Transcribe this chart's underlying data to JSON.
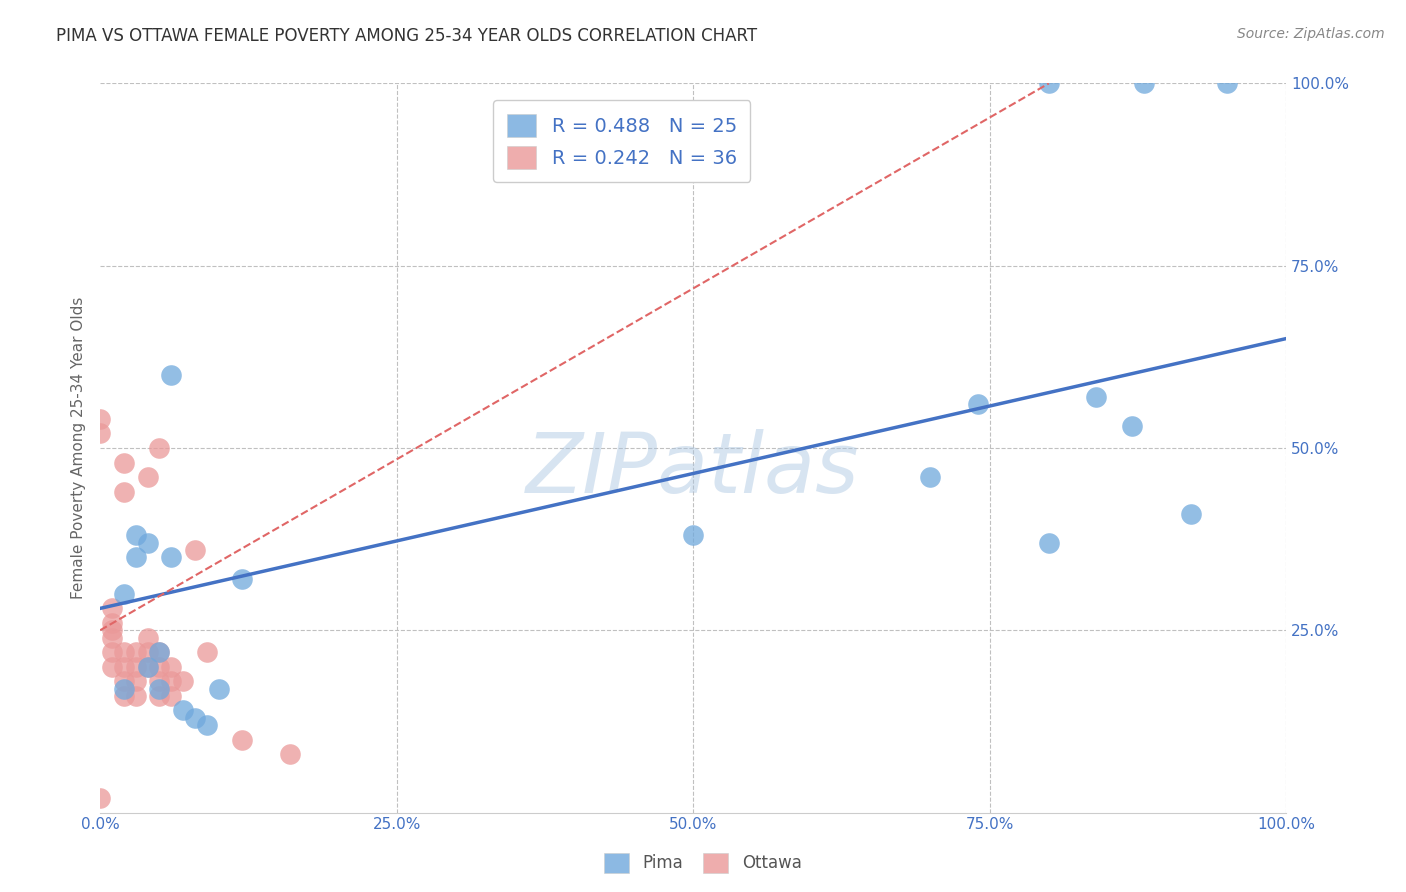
{
  "title": "PIMA VS OTTAWA FEMALE POVERTY AMONG 25-34 YEAR OLDS CORRELATION CHART",
  "source": "Source: ZipAtlas.com",
  "ylabel": "Female Poverty Among 25-34 Year Olds",
  "xlim": [
    0,
    1.0
  ],
  "ylim": [
    0,
    1.0
  ],
  "xticks": [
    0.0,
    0.25,
    0.5,
    0.75,
    1.0
  ],
  "yticks": [
    0.0,
    0.25,
    0.5,
    0.75,
    1.0
  ],
  "x_tick_labels": [
    "0.0%",
    "25.0%",
    "50.0%",
    "75.0%",
    "100.0%"
  ],
  "y_tick_labels": [
    "",
    "25.0%",
    "50.0%",
    "75.0%",
    "100.0%"
  ],
  "pima_color": "#6fa8dc",
  "ottawa_color": "#ea9999",
  "pima_R": 0.488,
  "pima_N": 25,
  "ottawa_R": 0.242,
  "ottawa_N": 36,
  "watermark": "ZIPatlas",
  "pima_x": [
    0.02,
    0.02,
    0.03,
    0.04,
    0.04,
    0.05,
    0.05,
    0.07,
    0.08,
    0.1,
    0.12,
    0.5,
    0.7,
    0.74,
    0.8,
    0.8,
    0.84,
    0.87,
    0.88,
    0.92,
    0.95,
    0.06,
    0.06,
    0.03,
    0.09
  ],
  "pima_y": [
    0.3,
    0.17,
    0.35,
    0.37,
    0.2,
    0.17,
    0.22,
    0.14,
    0.13,
    0.17,
    0.32,
    0.38,
    0.46,
    0.56,
    1.0,
    0.37,
    0.57,
    0.53,
    1.0,
    0.41,
    1.0,
    0.6,
    0.35,
    0.38,
    0.12
  ],
  "ottawa_x": [
    0.0,
    0.0,
    0.0,
    0.01,
    0.01,
    0.01,
    0.01,
    0.01,
    0.01,
    0.02,
    0.02,
    0.02,
    0.02,
    0.02,
    0.02,
    0.03,
    0.03,
    0.03,
    0.03,
    0.04,
    0.04,
    0.04,
    0.04,
    0.05,
    0.05,
    0.05,
    0.05,
    0.05,
    0.06,
    0.06,
    0.06,
    0.07,
    0.08,
    0.09,
    0.12,
    0.16
  ],
  "ottawa_y": [
    0.02,
    0.52,
    0.54,
    0.2,
    0.22,
    0.24,
    0.25,
    0.26,
    0.28,
    0.16,
    0.18,
    0.2,
    0.22,
    0.44,
    0.48,
    0.16,
    0.18,
    0.2,
    0.22,
    0.2,
    0.22,
    0.24,
    0.46,
    0.16,
    0.18,
    0.2,
    0.22,
    0.5,
    0.16,
    0.18,
    0.2,
    0.18,
    0.36,
    0.22,
    0.1,
    0.08
  ],
  "blue_line_x": [
    0.0,
    1.0
  ],
  "blue_line_y": [
    0.28,
    0.65
  ],
  "pink_line_x": [
    0.0,
    0.8
  ],
  "pink_line_y": [
    0.25,
    1.0
  ],
  "blue_line_color": "#4472c4",
  "pink_line_color": "#e06666",
  "background_color": "#ffffff",
  "grid_color": "#c0c0c0",
  "title_color": "#333333",
  "legend_text_color": "#4472c4",
  "tick_color": "#4472c4"
}
